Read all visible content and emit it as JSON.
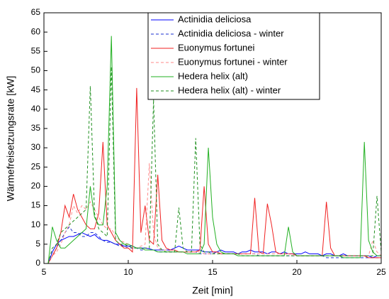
{
  "chart_data": {
    "type": "line",
    "xlabel": "Zeit [min]",
    "ylabel": "Wärmefreisetzungsrate [kW]",
    "x": [
      5,
      5.25,
      5.5,
      5.75,
      6,
      6.25,
      6.5,
      6.75,
      7,
      7.25,
      7.5,
      7.75,
      8,
      8.25,
      8.5,
      8.75,
      9,
      9.25,
      9.5,
      9.75,
      10,
      10.25,
      10.5,
      10.75,
      11,
      11.25,
      11.5,
      11.75,
      12,
      12.25,
      12.5,
      12.75,
      13,
      13.25,
      13.5,
      13.75,
      14,
      14.25,
      14.5,
      14.75,
      15,
      15.25,
      15.5,
      15.75,
      16,
      16.25,
      16.5,
      16.75,
      17,
      17.25,
      17.5,
      17.75,
      18,
      18.25,
      18.5,
      18.75,
      19,
      19.25,
      19.5,
      19.75,
      20,
      20.25,
      20.5,
      20.75,
      21,
      21.25,
      21.5,
      21.75,
      22,
      22.25,
      22.5,
      22.75,
      23,
      23.25,
      23.5,
      23.75,
      24,
      24.25,
      24.5,
      24.75,
      25
    ],
    "xlim": [
      5,
      25
    ],
    "xticks": [
      5,
      10,
      15,
      20,
      25
    ],
    "ylim": [
      0,
      65
    ],
    "yticks": [
      0,
      5,
      10,
      15,
      20,
      25,
      30,
      35,
      40,
      45,
      50,
      55,
      60,
      65
    ],
    "legend": "upper center",
    "series": [
      {
        "name": "Actinidia deliciosa",
        "color": "#0000ff",
        "dashed": false,
        "values": [
          null,
          0,
          3,
          5,
          6,
          6.5,
          7,
          7,
          7.5,
          8,
          7.5,
          7,
          7.5,
          6.5,
          6,
          6,
          5.5,
          5,
          5,
          4.5,
          4.5,
          4.5,
          4,
          4,
          4,
          3.8,
          3.5,
          3.5,
          3.5,
          3.5,
          3.5,
          4,
          4.5,
          4,
          3.5,
          3.5,
          3.5,
          3.5,
          3,
          3,
          3,
          3,
          3.5,
          3,
          3,
          3,
          2.5,
          3,
          3,
          3.5,
          3,
          3,
          3,
          2.5,
          3,
          3,
          2.5,
          3,
          2.5,
          2.5,
          2.5,
          2.5,
          3,
          2.5,
          2.5,
          2.5,
          2,
          2.5,
          2.5,
          2,
          2,
          2.5,
          2,
          2,
          2,
          2,
          2,
          2,
          1.5,
          2,
          2
        ]
      },
      {
        "name": "Actinidia deliciosa - winter",
        "color": "#1a2fd0",
        "dashed": true,
        "values": [
          null,
          0,
          2,
          4,
          6,
          8,
          9.5,
          8,
          8,
          7,
          7,
          8,
          8,
          7,
          6,
          5.5,
          5.5,
          5,
          4.5,
          4.5,
          4,
          4,
          4,
          3.5,
          3.5,
          3.5,
          3.5,
          3,
          3,
          3,
          3,
          3,
          3,
          3,
          3,
          3,
          3,
          2.5,
          2.5,
          2.5,
          2.5,
          3,
          2.5,
          2.5,
          2.5,
          2.5,
          2.5,
          2.5,
          2.5,
          2.5,
          2.5,
          2,
          2,
          2,
          2,
          2,
          2,
          2,
          2,
          2,
          2,
          2,
          2,
          2,
          2,
          2,
          2,
          1.5,
          1.5,
          1.5,
          1.5,
          1.5,
          1.5,
          1.5,
          1.5,
          1.5,
          1.5,
          1.5,
          1.5,
          1.5,
          1.5
        ]
      },
      {
        "name": "Euonymus fortunei",
        "color": "#f02020",
        "dashed": false,
        "values": [
          null,
          0,
          2,
          4,
          8,
          15,
          12,
          18,
          14,
          12,
          10,
          9,
          9,
          13,
          31.5,
          10,
          8,
          6,
          5,
          4,
          4,
          3,
          45.5,
          8,
          15,
          6,
          5,
          23,
          6,
          4,
          3.5,
          3.5,
          3,
          3,
          3,
          3,
          3,
          3.5,
          20,
          5,
          3,
          3,
          2.5,
          2.5,
          2.5,
          2.5,
          2.5,
          2.5,
          2.5,
          2.5,
          17,
          3,
          2.5,
          15.5,
          10,
          3,
          2.5,
          2.5,
          2.5,
          2.5,
          2,
          2,
          2,
          2,
          2,
          2,
          2,
          16,
          4,
          2,
          2,
          2,
          2,
          2,
          2,
          2,
          2,
          1.5,
          1.5,
          1.5,
          1.5
        ]
      },
      {
        "name": "Euonymus fortunei - winter",
        "color": "#ff8a8a",
        "dashed": true,
        "values": [
          null,
          0,
          2,
          3,
          5,
          8,
          10,
          15,
          13,
          15,
          14,
          16,
          14,
          12,
          10,
          9,
          9,
          7,
          6,
          5.5,
          5,
          4.5,
          4,
          4.5,
          5,
          26,
          8,
          4,
          3.5,
          3.5,
          3,
          3,
          3,
          3,
          3,
          3,
          3,
          3,
          2.5,
          2.5,
          2.5,
          2.5,
          2.5,
          2.5,
          2.5,
          2.5,
          2.5,
          2.5,
          2.5,
          2.5,
          2.5,
          2.5,
          2.5,
          2.5,
          2.5,
          2.5,
          2.5,
          2.5,
          2.5,
          2,
          2,
          2,
          2,
          2,
          2,
          2,
          2,
          2,
          2,
          2,
          2,
          2,
          2,
          2,
          2,
          2,
          2,
          2,
          6,
          3,
          2
        ]
      },
      {
        "name": "Hedera helix (alt)",
        "color": "#22b022",
        "dashed": false,
        "values": [
          null,
          0,
          9.5,
          6,
          4,
          4,
          5,
          6,
          7,
          8,
          9,
          20,
          12,
          10,
          10,
          20,
          59,
          8,
          6,
          5,
          5,
          4.5,
          4,
          4,
          3.5,
          3.5,
          3.5,
          3,
          3,
          3,
          3,
          3,
          3,
          3,
          2.5,
          2.5,
          2.5,
          2.5,
          5,
          30,
          12,
          5,
          3,
          2.5,
          2.5,
          2.5,
          2,
          2,
          2,
          2,
          2,
          2,
          2,
          2,
          2,
          2,
          2,
          2,
          9.5,
          3,
          2,
          2,
          2,
          2,
          2,
          2,
          2,
          2,
          2,
          2,
          2,
          1.5,
          1.5,
          1.5,
          1.5,
          1.5,
          31.5,
          6,
          3,
          2,
          2
        ]
      },
      {
        "name": "Hedera helix (alt) - winter",
        "color": "#1f8f1f",
        "dashed": true,
        "values": [
          null,
          0,
          4,
          5,
          8,
          9,
          10,
          11,
          12,
          13,
          14,
          46,
          13,
          9,
          8,
          7,
          51,
          6,
          5,
          5,
          4.5,
          4,
          4,
          4,
          4,
          4,
          42.5,
          5,
          3.5,
          3,
          3,
          3,
          14.5,
          4,
          3,
          3,
          32.5,
          5,
          3,
          3,
          2.5,
          2.5,
          2.5,
          2.5,
          2.5,
          2.5,
          2.5,
          2,
          2,
          2,
          2,
          2,
          2,
          2,
          2,
          2,
          2,
          2,
          2,
          2,
          2,
          2,
          2,
          2,
          2,
          2,
          2,
          2,
          2,
          2,
          2,
          2,
          2,
          2,
          2,
          2,
          2,
          2,
          2,
          17.5,
          3
        ]
      }
    ]
  }
}
